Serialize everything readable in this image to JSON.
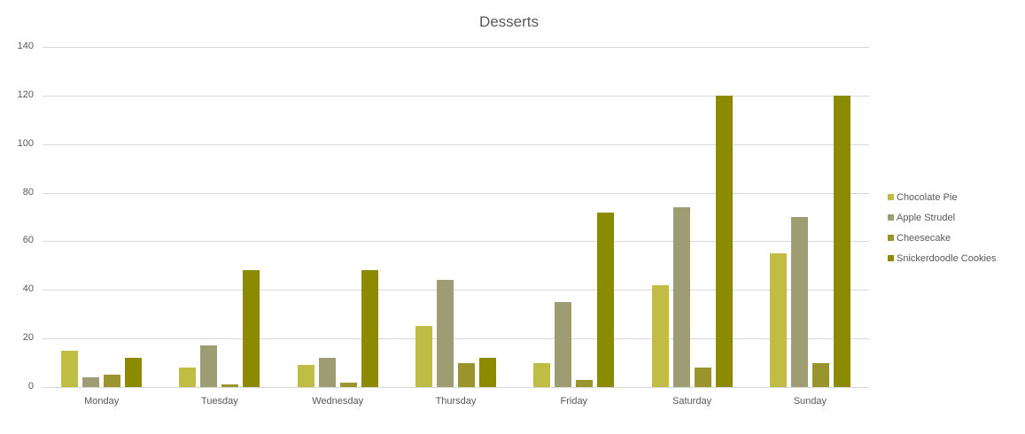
{
  "chart_data": {
    "type": "bar",
    "title": "Desserts",
    "xlabel": "",
    "ylabel": "",
    "ylim": [
      0,
      140
    ],
    "yticks": [
      0,
      20,
      40,
      60,
      80,
      100,
      120,
      140
    ],
    "grid": true,
    "legend_position": "right",
    "categories": [
      "Monday",
      "Tuesday",
      "Wednesday",
      "Thursday",
      "Friday",
      "Saturday",
      "Sunday"
    ],
    "series": [
      {
        "name": "Chocolate Pie",
        "color": "#bfbd44",
        "values": [
          15,
          8,
          9,
          25,
          10,
          42,
          55
        ]
      },
      {
        "name": "Apple Strudel",
        "color": "#9e9c73",
        "values": [
          4,
          17,
          12,
          44,
          35,
          74,
          70
        ]
      },
      {
        "name": "Cheesecake",
        "color": "#9a942c",
        "values": [
          5,
          1,
          2,
          10,
          3,
          8,
          10
        ]
      },
      {
        "name": "Snickerdoodle Cookies",
        "color": "#8c8b00",
        "values": [
          12,
          48,
          48,
          12,
          72,
          120,
          120
        ]
      }
    ]
  }
}
